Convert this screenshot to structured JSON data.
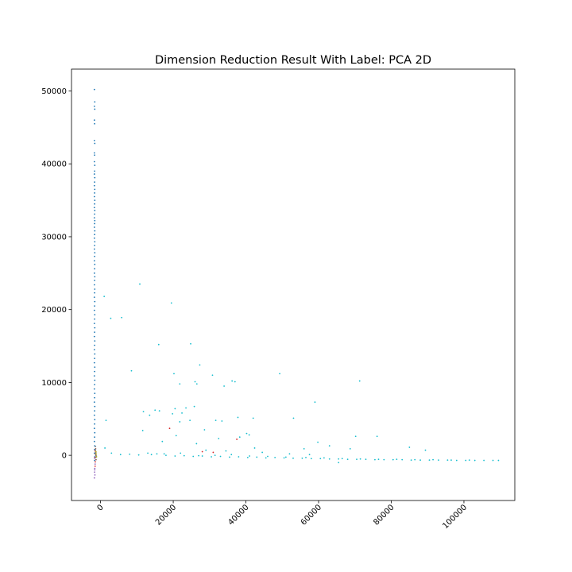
{
  "chart_data": {
    "type": "scatter",
    "title": "Dimension Reduction Result With Label: PCA 2D",
    "xlabel": "",
    "ylabel": "",
    "xlim": [
      -8000,
      114000
    ],
    "ylim": [
      -6200,
      53000
    ],
    "x_ticks": [
      0,
      20000,
      40000,
      60000,
      80000,
      100000
    ],
    "x_tick_labels": [
      "0",
      "20000",
      "40000",
      "60000",
      "80000",
      "100000"
    ],
    "y_ticks": [
      0,
      10000,
      20000,
      30000,
      40000,
      50000
    ],
    "y_tick_labels": [
      "0",
      "10000",
      "20000",
      "30000",
      "40000",
      "50000"
    ],
    "x_tick_rotation_deg": -45,
    "grid": false,
    "legend": "none",
    "series": [
      {
        "color": "#1f77b4",
        "points": [
          [
            -1700,
            50200
          ],
          [
            -1600,
            48500
          ],
          [
            -1700,
            47900
          ],
          [
            -1600,
            47500
          ],
          [
            -1700,
            46000
          ],
          [
            -1650,
            45500
          ],
          [
            -1700,
            43200
          ],
          [
            -1600,
            42800
          ],
          [
            -1700,
            41500
          ],
          [
            -1650,
            41200
          ],
          [
            -1700,
            40300
          ],
          [
            -1600,
            39800
          ],
          [
            -1650,
            39000
          ],
          [
            -1700,
            38600
          ],
          [
            -1600,
            38100
          ],
          [
            -1650,
            37500
          ],
          [
            -1700,
            37000
          ],
          [
            -1600,
            36500
          ],
          [
            -1650,
            36000
          ],
          [
            -1700,
            35500
          ],
          [
            -1600,
            35000
          ],
          [
            -1650,
            34500
          ],
          [
            -1700,
            34000
          ],
          [
            -1600,
            33600
          ],
          [
            -1650,
            33100
          ],
          [
            -1700,
            32600
          ],
          [
            -1600,
            32200
          ],
          [
            -1650,
            31800
          ],
          [
            -1700,
            31300
          ],
          [
            -1600,
            30800
          ],
          [
            -1650,
            30300
          ],
          [
            -1700,
            29800
          ],
          [
            -1600,
            29300
          ],
          [
            -1650,
            28800
          ],
          [
            -1700,
            28300
          ],
          [
            -1600,
            27800
          ],
          [
            -1650,
            27300
          ],
          [
            -1700,
            26700
          ],
          [
            -1600,
            26200
          ],
          [
            -1650,
            25600
          ],
          [
            -1700,
            25000
          ],
          [
            -1600,
            24500
          ],
          [
            -1650,
            24000
          ],
          [
            -1700,
            23400
          ],
          [
            -1600,
            22800
          ],
          [
            -1650,
            22300
          ],
          [
            -1700,
            21700
          ],
          [
            -1600,
            21100
          ],
          [
            -1650,
            20500
          ],
          [
            -1700,
            19900
          ],
          [
            -1600,
            19300
          ],
          [
            -1650,
            18700
          ],
          [
            -1700,
            18100
          ],
          [
            -1600,
            17500
          ],
          [
            -1650,
            16900
          ],
          [
            -1700,
            16300
          ],
          [
            -1600,
            15700
          ],
          [
            -1650,
            15100
          ],
          [
            -1700,
            14500
          ],
          [
            -1600,
            13900
          ],
          [
            -1650,
            13300
          ],
          [
            -1700,
            12700
          ],
          [
            -1600,
            12100
          ],
          [
            -1650,
            11500
          ],
          [
            -1700,
            10900
          ],
          [
            -1600,
            10300
          ],
          [
            -1650,
            9700
          ],
          [
            -1700,
            9100
          ],
          [
            -1600,
            8500
          ],
          [
            -1650,
            7900
          ],
          [
            -1700,
            7300
          ],
          [
            -1600,
            6700
          ],
          [
            -1650,
            6100
          ],
          [
            -1700,
            5500
          ],
          [
            -1600,
            4900
          ],
          [
            -1650,
            4300
          ],
          [
            -1700,
            3700
          ],
          [
            -1600,
            3100
          ],
          [
            -1650,
            2500
          ],
          [
            -1700,
            1900
          ],
          [
            -1600,
            1300
          ],
          [
            -1650,
            800
          ],
          [
            -1700,
            300
          ],
          [
            -1600,
            -200
          ],
          [
            -1650,
            -700
          ]
        ]
      },
      {
        "color": "#17becf",
        "points": [
          [
            10800,
            23500
          ],
          [
            19500,
            20900
          ],
          [
            1000,
            21800
          ],
          [
            2800,
            18800
          ],
          [
            5800,
            18900
          ],
          [
            16000,
            15200
          ],
          [
            24800,
            15300
          ],
          [
            8500,
            11600
          ],
          [
            20200,
            11200
          ],
          [
            21800,
            9800
          ],
          [
            27300,
            12400
          ],
          [
            30800,
            11000
          ],
          [
            34000,
            9500
          ],
          [
            36200,
            10200
          ],
          [
            37000,
            10100
          ],
          [
            26000,
            10100
          ],
          [
            26500,
            9800
          ],
          [
            49300,
            11200
          ],
          [
            71300,
            10200
          ],
          [
            1500,
            4800
          ],
          [
            11800,
            6000
          ],
          [
            13500,
            5500
          ],
          [
            15000,
            6200
          ],
          [
            16200,
            6100
          ],
          [
            19800,
            5700
          ],
          [
            20500,
            6400
          ],
          [
            21800,
            4600
          ],
          [
            22400,
            5800
          ],
          [
            23500,
            6500
          ],
          [
            24600,
            4800
          ],
          [
            25800,
            6700
          ],
          [
            28600,
            3500
          ],
          [
            31700,
            4800
          ],
          [
            33400,
            4700
          ],
          [
            37800,
            5200
          ],
          [
            40200,
            3000
          ],
          [
            42000,
            5100
          ],
          [
            53100,
            5100
          ],
          [
            59000,
            7300
          ],
          [
            11600,
            3400
          ],
          [
            17000,
            1900
          ],
          [
            20800,
            2700
          ],
          [
            26400,
            1600
          ],
          [
            32500,
            2300
          ],
          [
            38300,
            2500
          ],
          [
            40900,
            2800
          ],
          [
            42400,
            1000
          ],
          [
            56000,
            900
          ],
          [
            59800,
            1800
          ],
          [
            63000,
            1300
          ],
          [
            68700,
            900
          ],
          [
            70200,
            2600
          ],
          [
            76100,
            2600
          ],
          [
            85000,
            1100
          ],
          [
            89400,
            700
          ],
          [
            1200,
            1000
          ],
          [
            3000,
            300
          ],
          [
            5500,
            100
          ],
          [
            8000,
            150
          ],
          [
            10500,
            50
          ],
          [
            13000,
            300
          ],
          [
            15500,
            200
          ],
          [
            18000,
            0
          ],
          [
            20500,
            -100
          ],
          [
            23000,
            -50
          ],
          [
            25500,
            -150
          ],
          [
            28000,
            -100
          ],
          [
            30500,
            -200
          ],
          [
            33000,
            -150
          ],
          [
            35500,
            -250
          ],
          [
            38000,
            -200
          ],
          [
            40500,
            -300
          ],
          [
            43000,
            -250
          ],
          [
            45500,
            -350
          ],
          [
            48000,
            -300
          ],
          [
            50500,
            -350
          ],
          [
            53000,
            -400
          ],
          [
            55500,
            -400
          ],
          [
            58000,
            -450
          ],
          [
            60500,
            -450
          ],
          [
            63000,
            -500
          ],
          [
            65500,
            -500
          ],
          [
            68000,
            -550
          ],
          [
            70500,
            -550
          ],
          [
            73000,
            -550
          ],
          [
            75500,
            -600
          ],
          [
            78000,
            -600
          ],
          [
            80500,
            -600
          ],
          [
            83000,
            -600
          ],
          [
            85500,
            -650
          ],
          [
            88000,
            -650
          ],
          [
            90500,
            -650
          ],
          [
            93000,
            -650
          ],
          [
            95500,
            -650
          ],
          [
            98000,
            -700
          ],
          [
            100500,
            -700
          ],
          [
            103000,
            -700
          ],
          [
            105500,
            -700
          ],
          [
            108000,
            -700
          ],
          [
            109500,
            -700
          ],
          [
            14000,
            100
          ],
          [
            17500,
            200
          ],
          [
            22000,
            300
          ],
          [
            27000,
            -50
          ],
          [
            31500,
            0
          ],
          [
            36000,
            100
          ],
          [
            41000,
            -100
          ],
          [
            46000,
            -150
          ],
          [
            51000,
            -250
          ],
          [
            56500,
            -300
          ],
          [
            61500,
            -350
          ],
          [
            66500,
            -450
          ],
          [
            71500,
            -500
          ],
          [
            76500,
            -550
          ],
          [
            81500,
            -550
          ],
          [
            86500,
            -600
          ],
          [
            91500,
            -600
          ],
          [
            96500,
            -650
          ],
          [
            101500,
            -650
          ],
          [
            65500,
            -1000
          ],
          [
            34500,
            600
          ],
          [
            29000,
            700
          ],
          [
            44500,
            400
          ],
          [
            52000,
            200
          ],
          [
            57500,
            100
          ]
        ]
      },
      {
        "color": "#d62728",
        "points": [
          [
            -1500,
            600
          ],
          [
            -1400,
            200
          ],
          [
            -1550,
            -300
          ],
          [
            -1450,
            -900
          ],
          [
            -1500,
            -1500
          ],
          [
            28000,
            500
          ],
          [
            31000,
            400
          ],
          [
            37500,
            2200
          ],
          [
            19000,
            3700
          ]
        ]
      },
      {
        "color": "#9467bd",
        "points": [
          [
            -1600,
            -1800
          ],
          [
            -1650,
            -2300
          ],
          [
            -1550,
            -2700
          ],
          [
            -1700,
            -3100
          ],
          [
            -1600,
            -2000
          ],
          [
            -1500,
            -1200
          ],
          [
            -1650,
            -400
          ]
        ]
      },
      {
        "color": "#8c564b",
        "points": [
          [
            -1300,
            400
          ],
          [
            -1200,
            -100
          ],
          [
            -1350,
            900
          ],
          [
            -1250,
            -600
          ],
          [
            -1300,
            100
          ]
        ]
      },
      {
        "color": "#7f7f7f",
        "points": [
          [
            -1400,
            300
          ],
          [
            -1350,
            0
          ],
          [
            -1450,
            700
          ],
          [
            -1300,
            -300
          ],
          [
            -1400,
            1200
          ]
        ]
      },
      {
        "color": "#bcbd22",
        "points": [
          [
            -1200,
            200
          ],
          [
            -1100,
            -200
          ],
          [
            -1250,
            500
          ]
        ]
      }
    ]
  }
}
